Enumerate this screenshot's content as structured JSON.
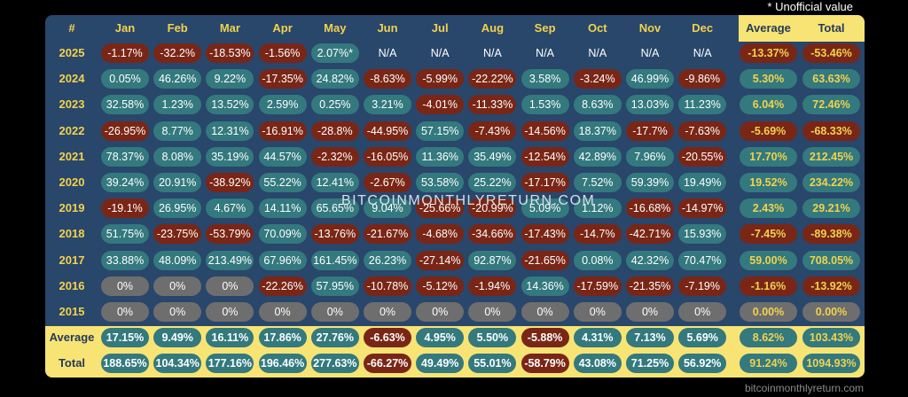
{
  "note": "* Unofficial value",
  "site": "bitcoinmonthlyreturn.com",
  "watermark": "BITCOINMONTHLYRETURN.COM",
  "colors": {
    "positive": "#33797e",
    "negative": "#7a2616",
    "zero": "#6e6e6e",
    "header_blue": "#29466b",
    "highlight_yellow": "#f8e474"
  },
  "chart_data": {
    "type": "table",
    "columns": [
      "#",
      "Jan",
      "Feb",
      "Mar",
      "Apr",
      "May",
      "Jun",
      "Jul",
      "Aug",
      "Sep",
      "Oct",
      "Nov",
      "Dec",
      "Average",
      "Total"
    ],
    "rows": [
      {
        "label": "2025",
        "cells": [
          "-1.17%",
          "-32.2%",
          "-18.53%",
          "-1.56%",
          "2.07%*",
          "N/A",
          "N/A",
          "N/A",
          "N/A",
          "N/A",
          "N/A",
          "N/A",
          "-13.37%",
          "-53.46%"
        ]
      },
      {
        "label": "2024",
        "cells": [
          "0.05%",
          "46.26%",
          "9.22%",
          "-17.35%",
          "24.82%",
          "-8.63%",
          "-5.99%",
          "-22.22%",
          "3.58%",
          "-3.24%",
          "46.99%",
          "-9.86%",
          "5.30%",
          "63.63%"
        ]
      },
      {
        "label": "2023",
        "cells": [
          "32.58%",
          "1.23%",
          "13.52%",
          "2.59%",
          "0.25%",
          "3.21%",
          "-4.01%",
          "-11.33%",
          "1.53%",
          "8.63%",
          "13.03%",
          "11.23%",
          "6.04%",
          "72.46%"
        ]
      },
      {
        "label": "2022",
        "cells": [
          "-26.95%",
          "8.77%",
          "12.31%",
          "-16.91%",
          "-28.8%",
          "-44.95%",
          "57.15%",
          "-7.43%",
          "-14.56%",
          "18.37%",
          "-17.7%",
          "-7.63%",
          "-5.69%",
          "-68.33%"
        ]
      },
      {
        "label": "2021",
        "cells": [
          "78.37%",
          "8.08%",
          "35.19%",
          "44.57%",
          "-2.32%",
          "-16.05%",
          "11.36%",
          "35.49%",
          "-12.54%",
          "42.89%",
          "7.96%",
          "-20.55%",
          "17.70%",
          "212.45%"
        ]
      },
      {
        "label": "2020",
        "cells": [
          "39.24%",
          "20.91%",
          "-38.92%",
          "55.22%",
          "12.41%",
          "-2.67%",
          "53.58%",
          "25.22%",
          "-17.17%",
          "7.52%",
          "59.39%",
          "19.49%",
          "19.52%",
          "234.22%"
        ]
      },
      {
        "label": "2019",
        "cells": [
          "-19.1%",
          "26.95%",
          "4.67%",
          "14.11%",
          "65.65%",
          "9.04%",
          "-25.66%",
          "-20.99%",
          "5.09%",
          "1.12%",
          "-16.68%",
          "-14.97%",
          "2.43%",
          "29.21%"
        ]
      },
      {
        "label": "2018",
        "cells": [
          "51.75%",
          "-23.75%",
          "-53.79%",
          "70.09%",
          "-13.76%",
          "-21.67%",
          "-4.68%",
          "-34.66%",
          "-17.43%",
          "-14.7%",
          "-42.71%",
          "15.93%",
          "-7.45%",
          "-89.38%"
        ]
      },
      {
        "label": "2017",
        "cells": [
          "33.88%",
          "48.09%",
          "213.49%",
          "67.96%",
          "161.45%",
          "26.23%",
          "-27.14%",
          "92.87%",
          "-21.65%",
          "0.08%",
          "42.32%",
          "70.47%",
          "59.00%",
          "708.05%"
        ]
      },
      {
        "label": "2016",
        "cells": [
          "0%",
          "0%",
          "0%",
          "-22.26%",
          "57.95%",
          "-10.78%",
          "-5.12%",
          "-1.94%",
          "14.36%",
          "-17.59%",
          "-21.35%",
          "-7.19%",
          "-1.16%",
          "-13.92%"
        ]
      },
      {
        "label": "2015",
        "cells": [
          "0%",
          "0%",
          "0%",
          "0%",
          "0%",
          "0%",
          "0%",
          "0%",
          "0%",
          "0%",
          "0%",
          "0%",
          "0.00%",
          "0.00%"
        ]
      },
      {
        "label": "Average",
        "cells": [
          "17.15%",
          "9.49%",
          "16.11%",
          "17.86%",
          "27.76%",
          "-6.63%",
          "4.95%",
          "5.50%",
          "-5.88%",
          "4.31%",
          "7.13%",
          "5.69%",
          "8.62%",
          "103.43%"
        ]
      },
      {
        "label": "Total",
        "cells": [
          "188.65%",
          "104.34%",
          "177.16%",
          "196.46%",
          "277.63%",
          "-66.27%",
          "49.49%",
          "55.01%",
          "-58.79%",
          "43.08%",
          "71.25%",
          "56.92%",
          "91.24%",
          "1094.93%"
        ]
      }
    ]
  }
}
